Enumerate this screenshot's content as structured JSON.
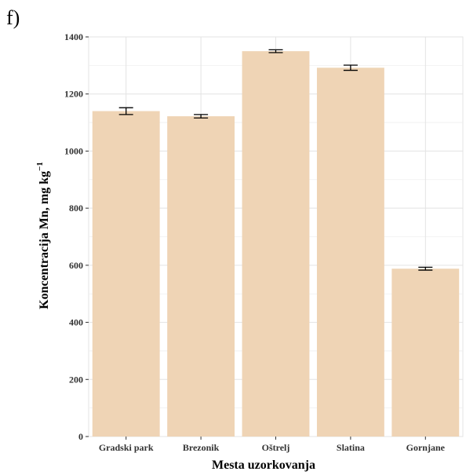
{
  "panel_label": "f)",
  "chart_data": {
    "type": "bar",
    "categories": [
      "Gradski park",
      "Brezonik",
      "Oštrelj",
      "Slatina",
      "Gornjane"
    ],
    "values": [
      1140,
      1122,
      1350,
      1292,
      588
    ],
    "errors": [
      12,
      6,
      5,
      9,
      5
    ],
    "xlabel": "Mesta uzorkovanja",
    "ylabel_main": "Koncentracija Mn, mg kg",
    "ylabel_exponent": "−1",
    "ylim": [
      0,
      1400
    ],
    "yticks": [
      0,
      200,
      400,
      600,
      800,
      1000,
      1200,
      1400
    ],
    "grid": true,
    "bar_color": "#efd4b5",
    "grid_color": "#e3e3e3",
    "errorbar_color": "#000000"
  }
}
